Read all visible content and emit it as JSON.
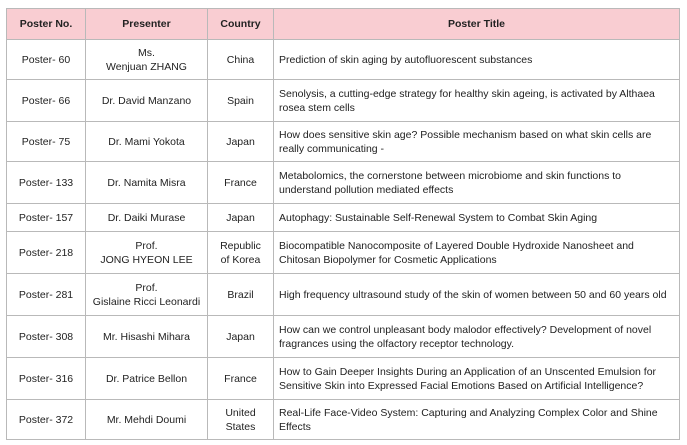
{
  "theme": {
    "header_bg": "#f9cdd2",
    "border": "#b9b9b9"
  },
  "table": {
    "columns": [
      "Poster No.",
      "Presenter",
      "Country",
      "Poster Title"
    ],
    "rows": [
      {
        "no": "Poster- 60",
        "presenter": "Ms.\nWenjuan ZHANG",
        "country": "China",
        "title": "Prediction of skin aging by autofluorescent substances"
      },
      {
        "no": "Poster- 66",
        "presenter": "Dr. David Manzano",
        "country": "Spain",
        "title": "Senolysis, a cutting-edge strategy for healthy skin ageing, is activated by Althaea rosea stem cells"
      },
      {
        "no": "Poster- 75",
        "presenter": "Dr. Mami Yokota",
        "country": "Japan",
        "title": "How does sensitive skin age? Possible mechanism based on what skin cells are really communicating -"
      },
      {
        "no": "Poster- 133",
        "presenter": "Dr. Namita Misra",
        "country": "France",
        "title": "Metabolomics, the cornerstone between microbiome and skin functions to understand pollution mediated effects"
      },
      {
        "no": "Poster- 157",
        "presenter": "Dr. Daiki Murase",
        "country": "Japan",
        "title": "Autophagy: Sustainable Self-Renewal System to Combat Skin Aging"
      },
      {
        "no": "Poster- 218",
        "presenter": "Prof.\nJONG HYEON LEE",
        "country": "Republic\nof Korea",
        "title": "Biocompatible Nanocomposite of Layered Double Hydroxide Nanosheet and Chitosan Biopolymer for Cosmetic Applications"
      },
      {
        "no": "Poster- 281",
        "presenter": "Prof.\nGislaine Ricci Leonardi",
        "country": "Brazil",
        "title": "High frequency ultrasound study of the skin of women between 50 and 60 years old"
      },
      {
        "no": "Poster- 308",
        "presenter": "Mr. Hisashi Mihara",
        "country": "Japan",
        "title": "How can we control unpleasant body malodor effectively? Development of novel fragrances using the olfactory receptor technology."
      },
      {
        "no": "Poster- 316",
        "presenter": "Dr. Patrice Bellon",
        "country": "France",
        "title": "How to Gain Deeper Insights During an Application of an Unscented Emulsion for Sensitive Skin into Expressed Facial Emotions Based on Artificial Intelligence?"
      },
      {
        "no": "Poster- 372",
        "presenter": "Mr. Mehdi Doumi",
        "country": "United\nStates",
        "title": "Real-Life Face-Video System: Capturing and Analyzing Complex Color and Shine Effects"
      }
    ]
  }
}
